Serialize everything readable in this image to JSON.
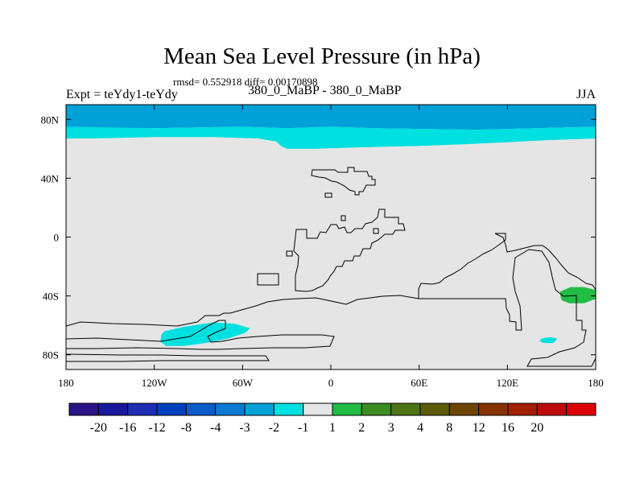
{
  "header": {
    "title": "Mean Sea Level Pressure (in hPa)",
    "stats": "rmsd= 0.552918 diff= 0.00170898",
    "experiment": "Expt = teYdy1-teYdy",
    "period": "380_0_MaBP - 380_0_MaBP",
    "season": "JJA"
  },
  "chart_data": {
    "type": "heatmap",
    "title": "Mean Sea Level Pressure (in hPa)",
    "xlabel": "",
    "ylabel": "",
    "xlim": [
      -180,
      180
    ],
    "ylim": [
      -90,
      90
    ],
    "x_ticks": [
      {
        "value": -180,
        "label": "180"
      },
      {
        "value": -120,
        "label": "120W"
      },
      {
        "value": -60,
        "label": "60W"
      },
      {
        "value": 0,
        "label": "0"
      },
      {
        "value": 60,
        "label": "60E"
      },
      {
        "value": 120,
        "label": "120E"
      },
      {
        "value": 180,
        "label": "180"
      }
    ],
    "y_ticks": [
      {
        "value": 80,
        "label": "80N"
      },
      {
        "value": 40,
        "label": "40N"
      },
      {
        "value": 0,
        "label": "0"
      },
      {
        "value": -40,
        "label": "40S"
      },
      {
        "value": -80,
        "label": "80S"
      }
    ],
    "background_level": "-1 to 1",
    "regions": [
      {
        "name": "arctic-band",
        "level": "-3 to -2",
        "color": "#00a0d8",
        "points": [
          [
            -180,
            90
          ],
          [
            180,
            90
          ],
          [
            180,
            75
          ],
          [
            100,
            73
          ],
          [
            30,
            74
          ],
          [
            0,
            75
          ],
          [
            -30,
            74
          ],
          [
            -60,
            75
          ],
          [
            -120,
            74
          ],
          [
            -180,
            74
          ]
        ]
      },
      {
        "name": "arctic-edge",
        "level": "-2 to -1",
        "color": "#00e0e0",
        "points": [
          [
            -180,
            75
          ],
          [
            -120,
            74
          ],
          [
            -60,
            75
          ],
          [
            -30,
            74
          ],
          [
            0,
            75
          ],
          [
            30,
            74
          ],
          [
            100,
            73
          ],
          [
            180,
            75
          ],
          [
            180,
            67
          ],
          [
            150,
            66
          ],
          [
            110,
            64
          ],
          [
            90,
            63
          ],
          [
            60,
            62
          ],
          [
            20,
            61
          ],
          [
            -10,
            60
          ],
          [
            -30,
            60
          ],
          [
            -34,
            62
          ],
          [
            -37,
            65
          ],
          [
            -50,
            67
          ],
          [
            -80,
            68
          ],
          [
            -120,
            68
          ],
          [
            -160,
            67
          ],
          [
            -180,
            67
          ]
        ]
      },
      {
        "name": "south-pacific-low",
        "level": "-2 to -1",
        "color": "#00e0e0",
        "points": [
          [
            -113,
            -64
          ],
          [
            -100,
            -61
          ],
          [
            -80,
            -58
          ],
          [
            -65,
            -59
          ],
          [
            -55,
            -62
          ],
          [
            -58,
            -65
          ],
          [
            -70,
            -69
          ],
          [
            -85,
            -72
          ],
          [
            -100,
            -74
          ],
          [
            -112,
            -74
          ],
          [
            -116,
            -71
          ],
          [
            -115,
            -66
          ]
        ]
      },
      {
        "name": "australia-low",
        "level": "-2 to -1",
        "color": "#00e0e0",
        "points": [
          [
            143,
            -69
          ],
          [
            149,
            -68
          ],
          [
            154,
            -69
          ],
          [
            151,
            -72
          ],
          [
            145,
            -72
          ],
          [
            142,
            -71
          ]
        ]
      },
      {
        "name": "tasman-high",
        "level": "1 to 2",
        "color": "#22bb44",
        "points": [
          [
            156,
            -37
          ],
          [
            163,
            -34
          ],
          [
            172,
            -34
          ],
          [
            180,
            -36
          ],
          [
            180,
            -42
          ],
          [
            172,
            -45
          ],
          [
            162,
            -45
          ],
          [
            157,
            -43
          ],
          [
            156,
            -40
          ]
        ]
      }
    ],
    "colorbar": {
      "colors": [
        "#281486",
        "#17189b",
        "#1d2db4",
        "#0042be",
        "#0a5cc8",
        "#0a7ad2",
        "#00a0d8",
        "#00e0e0",
        "#e5e5e5",
        "#22bb44",
        "#3c8c22",
        "#4c7414",
        "#5b5b0a",
        "#6e4500",
        "#873200",
        "#a21e00",
        "#be0a0a",
        "#dc0000"
      ],
      "labels": [
        "-20",
        "-16",
        "-12",
        "-8",
        "-4",
        "-3",
        "-2",
        "-1",
        "1",
        "2",
        "3",
        "4",
        "8",
        "12",
        "16",
        "20"
      ]
    }
  }
}
